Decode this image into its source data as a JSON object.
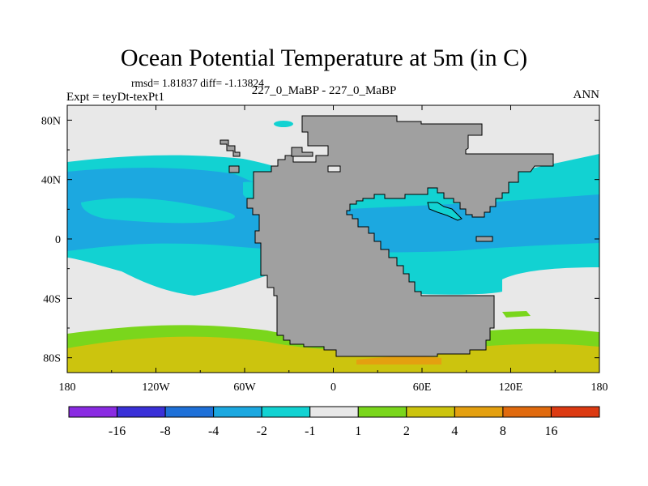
{
  "chart_data": {
    "type": "heatmap",
    "title": "Ocean Potential Temperature at 5m (in C)",
    "stats": "rmsd= 1.81837 diff= -1.13824",
    "left_label": "Expt = teyDt-texPt1",
    "center_label": "227_0_MaBP - 227_0_MaBP",
    "right_label": "ANN",
    "x_ticks": [
      "180",
      "120W",
      "60W",
      "0",
      "60E",
      "120E",
      "180"
    ],
    "x_tick_values": [
      -180,
      -120,
      -60,
      0,
      60,
      120,
      180
    ],
    "y_ticks": [
      "80N",
      "40N",
      "0",
      "40S",
      "80S"
    ],
    "y_tick_values": [
      80,
      40,
      0,
      -40,
      -80
    ],
    "xlim": [
      -180,
      180
    ],
    "ylim": [
      -90,
      90
    ],
    "colorbar": {
      "labels": [
        "-16",
        "-8",
        "-4",
        "-2",
        "-1",
        "1",
        "2",
        "4",
        "8",
        "16"
      ],
      "colors": [
        "#8a2be2",
        "#3a30d8",
        "#1e70d8",
        "#1ca8e0",
        "#12d2d2",
        "#e8e8e8",
        "#7ad61c",
        "#ccc40e",
        "#e4a010",
        "#e06a0e",
        "#dc3a12"
      ]
    },
    "land_color": "#a0a0a0"
  }
}
